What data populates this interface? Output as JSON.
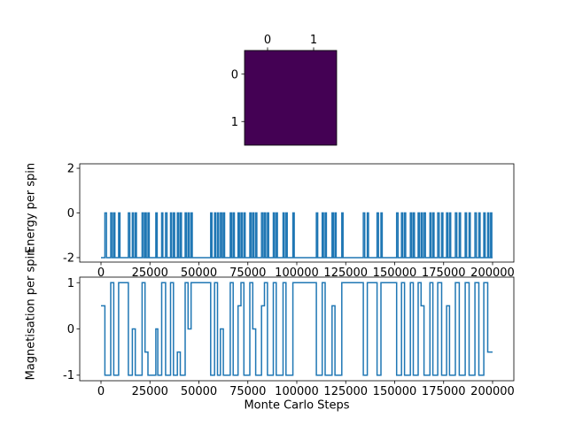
{
  "figure": {
    "background": "#ffffff",
    "line_color": "#1f77b4",
    "spine_color": "#000000"
  },
  "chart_data": [
    {
      "type": "heatmap",
      "title": "",
      "colormap": "viridis",
      "cell_color": "#440154",
      "x_tick_labels": [
        "0",
        "1"
      ],
      "y_tick_labels": [
        "0",
        "1"
      ],
      "values": [
        [
          0,
          0
        ],
        [
          0,
          0
        ]
      ]
    },
    {
      "type": "line",
      "ylabel": "Energy per spin",
      "line_color": "#1f77b4",
      "xlim": [
        0,
        200000
      ],
      "ylim": [
        -2.2,
        2.2
      ],
      "x_tick_labels": [
        "0",
        "25000",
        "50000",
        "75000",
        "100000",
        "125000",
        "150000",
        "175000",
        "200000"
      ],
      "y_tick_labels": [
        "-2",
        "0",
        "2"
      ],
      "y_tick_values": [
        -2,
        0,
        2
      ],
      "baseline": -2,
      "spike_value": 0,
      "spike_intervals": [
        [
          2000,
          2800
        ],
        [
          5000,
          5700
        ],
        [
          6500,
          7100
        ],
        [
          9000,
          9700
        ],
        [
          14000,
          14700
        ],
        [
          16000,
          16600
        ],
        [
          17500,
          18100
        ],
        [
          21000,
          21700
        ],
        [
          22500,
          23100
        ],
        [
          24000,
          24600
        ],
        [
          28000,
          28700
        ],
        [
          31000,
          31600
        ],
        [
          33000,
          33700
        ],
        [
          35500,
          36100
        ],
        [
          37000,
          37600
        ],
        [
          39000,
          39700
        ],
        [
          40500,
          41100
        ],
        [
          43000,
          43600
        ],
        [
          44500,
          45100
        ],
        [
          46000,
          46600
        ],
        [
          56000,
          56700
        ],
        [
          58000,
          58600
        ],
        [
          59500,
          60100
        ],
        [
          61000,
          61700
        ],
        [
          62500,
          63100
        ],
        [
          66000,
          66700
        ],
        [
          67500,
          68100
        ],
        [
          70000,
          70700
        ],
        [
          71500,
          72100
        ],
        [
          73000,
          73600
        ],
        [
          76000,
          76700
        ],
        [
          77500,
          78100
        ],
        [
          79000,
          79600
        ],
        [
          82000,
          82700
        ],
        [
          83500,
          84100
        ],
        [
          85000,
          85600
        ],
        [
          88000,
          88700
        ],
        [
          89500,
          90100
        ],
        [
          93000,
          93600
        ],
        [
          94500,
          95100
        ],
        [
          98000,
          98700
        ],
        [
          110000,
          110700
        ],
        [
          113000,
          113600
        ],
        [
          114500,
          115100
        ],
        [
          118000,
          118700
        ],
        [
          119500,
          120100
        ],
        [
          123000,
          123600
        ],
        [
          134000,
          134700
        ],
        [
          136000,
          136600
        ],
        [
          141000,
          141700
        ],
        [
          143000,
          143600
        ],
        [
          151000,
          151700
        ],
        [
          153500,
          154100
        ],
        [
          155000,
          155600
        ],
        [
          158000,
          158700
        ],
        [
          159500,
          160100
        ],
        [
          162000,
          162600
        ],
        [
          163500,
          164100
        ],
        [
          165000,
          165700
        ],
        [
          168000,
          168600
        ],
        [
          169500,
          170100
        ],
        [
          172000,
          172700
        ],
        [
          174000,
          174600
        ],
        [
          176500,
          177100
        ],
        [
          178000,
          178600
        ],
        [
          181000,
          181700
        ],
        [
          183000,
          183600
        ],
        [
          186000,
          186700
        ],
        [
          188000,
          188600
        ],
        [
          191000,
          191700
        ],
        [
          193000,
          193600
        ],
        [
          195500,
          196200
        ],
        [
          197500,
          198100
        ],
        [
          199000,
          199600
        ]
      ]
    },
    {
      "type": "line",
      "ylabel": "Magnetisation per spin",
      "xlabel": "Monte Carlo Steps",
      "line_color": "#1f77b4",
      "xlim": [
        0,
        200000
      ],
      "ylim": [
        -1.12,
        1.12
      ],
      "x_tick_labels": [
        "0",
        "25000",
        "50000",
        "75000",
        "100000",
        "125000",
        "150000",
        "175000",
        "200000"
      ],
      "y_tick_labels": [
        "-1",
        "0",
        "1"
      ],
      "y_tick_values": [
        -1,
        0,
        1
      ],
      "step_points": [
        [
          0,
          0.5
        ],
        [
          2000,
          -1
        ],
        [
          5000,
          1
        ],
        [
          6500,
          -1
        ],
        [
          9000,
          1
        ],
        [
          14000,
          -1
        ],
        [
          16000,
          0
        ],
        [
          17500,
          -1
        ],
        [
          21000,
          1
        ],
        [
          22500,
          -0.5
        ],
        [
          24000,
          -1
        ],
        [
          28000,
          0
        ],
        [
          29000,
          -1
        ],
        [
          31000,
          1
        ],
        [
          33000,
          -1
        ],
        [
          35500,
          1
        ],
        [
          37000,
          -1
        ],
        [
          39000,
          -0.5
        ],
        [
          40500,
          -1
        ],
        [
          43000,
          1
        ],
        [
          44500,
          0
        ],
        [
          46000,
          1
        ],
        [
          56000,
          -1
        ],
        [
          58000,
          1
        ],
        [
          59500,
          -1
        ],
        [
          61000,
          0
        ],
        [
          62500,
          -1
        ],
        [
          66000,
          1
        ],
        [
          67500,
          -1
        ],
        [
          70000,
          0.5
        ],
        [
          71500,
          1
        ],
        [
          73000,
          -1
        ],
        [
          76000,
          1
        ],
        [
          77500,
          0
        ],
        [
          79000,
          -1
        ],
        [
          82000,
          0.5
        ],
        [
          83500,
          1
        ],
        [
          85000,
          -1
        ],
        [
          88000,
          1
        ],
        [
          89500,
          -1
        ],
        [
          93000,
          1
        ],
        [
          94500,
          -1
        ],
        [
          98000,
          1
        ],
        [
          110000,
          -1
        ],
        [
          113000,
          1
        ],
        [
          114500,
          -1
        ],
        [
          118000,
          0.5
        ],
        [
          119500,
          -1
        ],
        [
          123000,
          1
        ],
        [
          134000,
          -1
        ],
        [
          136000,
          1
        ],
        [
          141000,
          -1
        ],
        [
          143000,
          1
        ],
        [
          151000,
          -1
        ],
        [
          153500,
          1
        ],
        [
          155000,
          -1
        ],
        [
          158000,
          1
        ],
        [
          159500,
          -1
        ],
        [
          162000,
          1
        ],
        [
          163500,
          0.5
        ],
        [
          165000,
          -1
        ],
        [
          168000,
          1
        ],
        [
          169500,
          -1
        ],
        [
          172000,
          1
        ],
        [
          174000,
          -1
        ],
        [
          176500,
          0.5
        ],
        [
          178000,
          -1
        ],
        [
          181000,
          1
        ],
        [
          183000,
          -1
        ],
        [
          186000,
          1
        ],
        [
          188000,
          -1
        ],
        [
          191000,
          1
        ],
        [
          193000,
          -1
        ],
        [
          195500,
          1
        ],
        [
          197500,
          -0.5
        ]
      ]
    }
  ]
}
